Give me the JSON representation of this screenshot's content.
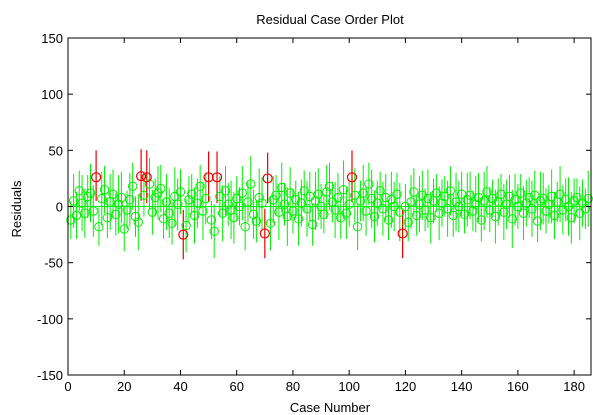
{
  "chart_data": {
    "type": "scatter",
    "title": "Residual Case Order Plot",
    "xlabel": "Case Number",
    "ylabel": "Residuals",
    "xlim": [
      0,
      186
    ],
    "ylim": [
      -150,
      150
    ],
    "xticks": [
      0,
      20,
      40,
      60,
      80,
      100,
      120,
      140,
      160,
      180
    ],
    "yticks": [
      -150,
      -100,
      -50,
      0,
      50,
      100,
      150
    ],
    "grid": false,
    "colors": {
      "inlier": "#00ee00",
      "outlier": "#ee0000"
    },
    "outliers": [
      {
        "x": 10,
        "y": 26,
        "lo": 5,
        "hi": 50
      },
      {
        "x": 26,
        "y": 27,
        "lo": 5,
        "hi": 51
      },
      {
        "x": 28,
        "y": 26,
        "lo": 3,
        "hi": 50
      },
      {
        "x": 41,
        "y": -25,
        "lo": -47,
        "hi": -3
      },
      {
        "x": 50,
        "y": 26,
        "lo": 4,
        "hi": 49
      },
      {
        "x": 53,
        "y": 26,
        "lo": 3,
        "hi": 49
      },
      {
        "x": 70,
        "y": -24,
        "lo": -46,
        "hi": -2
      },
      {
        "x": 71,
        "y": 25,
        "lo": 3,
        "hi": 48
      },
      {
        "x": 101,
        "y": 26,
        "lo": 4,
        "hi": 50
      },
      {
        "x": 119,
        "y": -24,
        "lo": -46,
        "hi": -2
      }
    ],
    "residuals": [
      -12,
      5,
      -8,
      14,
      3,
      -6,
      9,
      12,
      -4,
      0,
      -18,
      7,
      15,
      -10,
      4,
      11,
      -7,
      2,
      8,
      -20,
      -3,
      6,
      18,
      -9,
      -14,
      0,
      10,
      3,
      20,
      -5,
      8,
      12,
      16,
      -11,
      4,
      -6,
      -15,
      9,
      2,
      13,
      0,
      -17,
      6,
      11,
      -8,
      3,
      18,
      -4,
      7,
      0,
      -12,
      -22,
      5,
      9,
      -6,
      14,
      2,
      -3,
      -10,
      7,
      0,
      12,
      -18,
      4,
      20,
      -7,
      -13,
      8,
      3,
      0,
      0,
      -15,
      6,
      10,
      -5,
      17,
      2,
      -9,
      12,
      -4,
      6,
      -11,
      3,
      14,
      -2,
      9,
      -16,
      5,
      11,
      0,
      -7,
      13,
      18,
      4,
      -3,
      8,
      -10,
      15,
      -6,
      2,
      0,
      10,
      -18,
      5,
      12,
      -4,
      20,
      7,
      -9,
      3,
      14,
      -2,
      8,
      -12,
      6,
      0,
      11,
      -5,
      9,
      0,
      -14,
      4,
      13,
      -8,
      2,
      10,
      -3,
      7,
      -10,
      5,
      12,
      -6,
      3,
      9,
      -2,
      14,
      -8,
      4,
      0,
      11,
      -7,
      6,
      10,
      -4,
      2,
      8,
      -12,
      5,
      13,
      -3,
      7,
      -9,
      4,
      11,
      -5,
      2,
      9,
      -11,
      6,
      0,
      12,
      -6,
      3,
      8,
      -2,
      10,
      -13,
      5,
      7,
      -4,
      2,
      9,
      -8,
      4,
      11,
      -3,
      6,
      0,
      -10,
      5,
      8,
      -6,
      3,
      -2,
      7
    ]
  }
}
